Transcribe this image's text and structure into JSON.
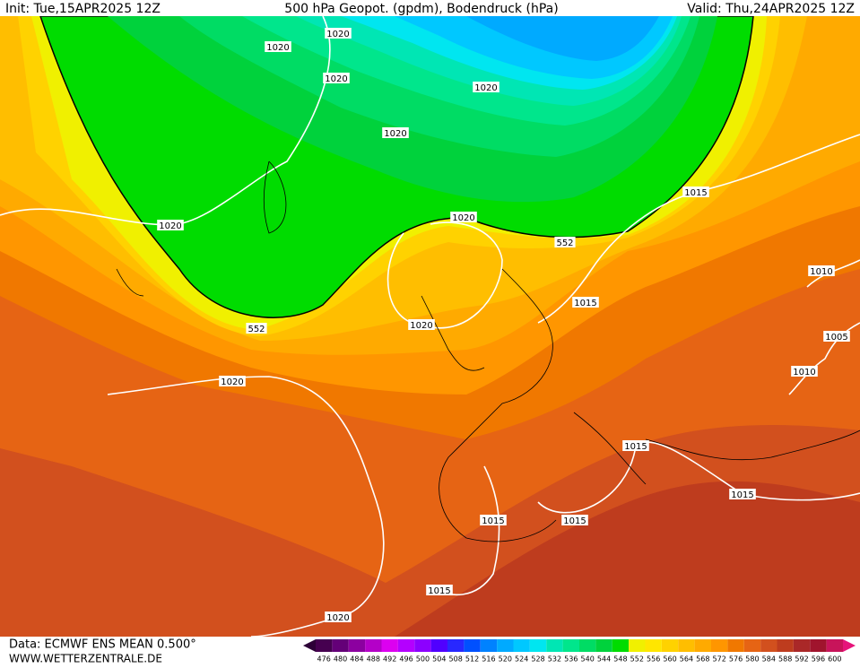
{
  "header": {
    "init": "Init: Tue,15APR2025 12Z",
    "title": "500 hPa Geopot. (gpdm), Bodendruck (hPa)",
    "valid": "Valid: Thu,24APR2025 12Z"
  },
  "contour_labels": [
    "1020",
    "1020",
    "1020",
    "1020",
    "1020",
    "1015",
    "1020",
    "1020",
    "552",
    "1010",
    "1015",
    "552",
    "1020",
    "1005",
    "1010",
    "1020",
    "1015",
    "1015",
    "1015",
    "1015",
    "1015",
    "1020"
  ],
  "colorbar": {
    "values": [
      476,
      480,
      484,
      488,
      492,
      496,
      500,
      504,
      508,
      512,
      516,
      520,
      524,
      528,
      532,
      536,
      540,
      544,
      548,
      552,
      556,
      560,
      564,
      568,
      572,
      576,
      580,
      584,
      588,
      592,
      596,
      600
    ],
    "colors": [
      "#460050",
      "#640078",
      "#8c00a0",
      "#b400c8",
      "#dc00f0",
      "#b400ff",
      "#8c00ff",
      "#5000ff",
      "#2828ff",
      "#0050ff",
      "#0082ff",
      "#00aaff",
      "#00c8ff",
      "#00e6f0",
      "#00e6b4",
      "#00e68c",
      "#00dc64",
      "#00d23c",
      "#00dc00",
      "#f0f000",
      "#ffe600",
      "#ffd200",
      "#ffbe00",
      "#ffaa00",
      "#ff9600",
      "#f07800",
      "#e66414",
      "#d2501e",
      "#be3c1e",
      "#aa2828",
      "#a0142d",
      "#c8145a"
    ]
  },
  "footer": {
    "source": "Data: ECMWF ENS MEAN 0.500°",
    "site": "WWW.WETTERZENTRALE.DE"
  }
}
